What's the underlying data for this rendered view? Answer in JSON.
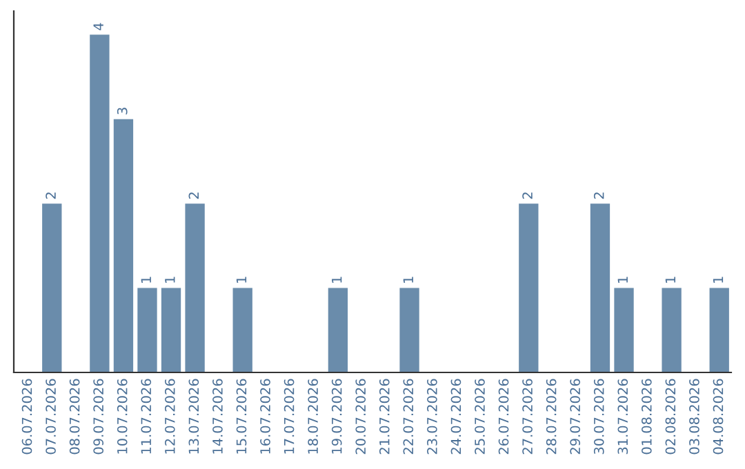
{
  "chart_data": {
    "type": "bar",
    "categories": [
      "06.07.2026",
      "07.07.2026",
      "08.07.2026",
      "09.07.2026",
      "10.07.2026",
      "11.07.2026",
      "12.07.2026",
      "13.07.2026",
      "14.07.2026",
      "15.07.2026",
      "16.07.2026",
      "17.07.2026",
      "18.07.2026",
      "19.07.2026",
      "20.07.2026",
      "21.07.2026",
      "22.07.2026",
      "23.07.2026",
      "24.07.2026",
      "25.07.2026",
      "26.07.2026",
      "27.07.2026",
      "28.07.2026",
      "29.07.2026",
      "30.07.2026",
      "31.07.2026",
      "01.08.2026",
      "02.08.2026",
      "03.08.2026",
      "04.08.2026"
    ],
    "values": [
      0,
      2,
      0,
      4,
      3,
      1,
      1,
      2,
      0,
      1,
      0,
      0,
      0,
      1,
      0,
      0,
      1,
      0,
      0,
      0,
      0,
      2,
      0,
      0,
      2,
      1,
      0,
      1,
      0,
      1
    ],
    "value_labels": [
      null,
      "2",
      null,
      "4",
      "3",
      "1",
      "1",
      "2",
      null,
      "1",
      null,
      null,
      null,
      "1",
      null,
      null,
      "1",
      null,
      null,
      null,
      null,
      "2",
      null,
      null,
      "2",
      "1",
      null,
      "1",
      null,
      "1"
    ],
    "color": "#6a8cab",
    "tick_labels": "x",
    "grid": false
  }
}
